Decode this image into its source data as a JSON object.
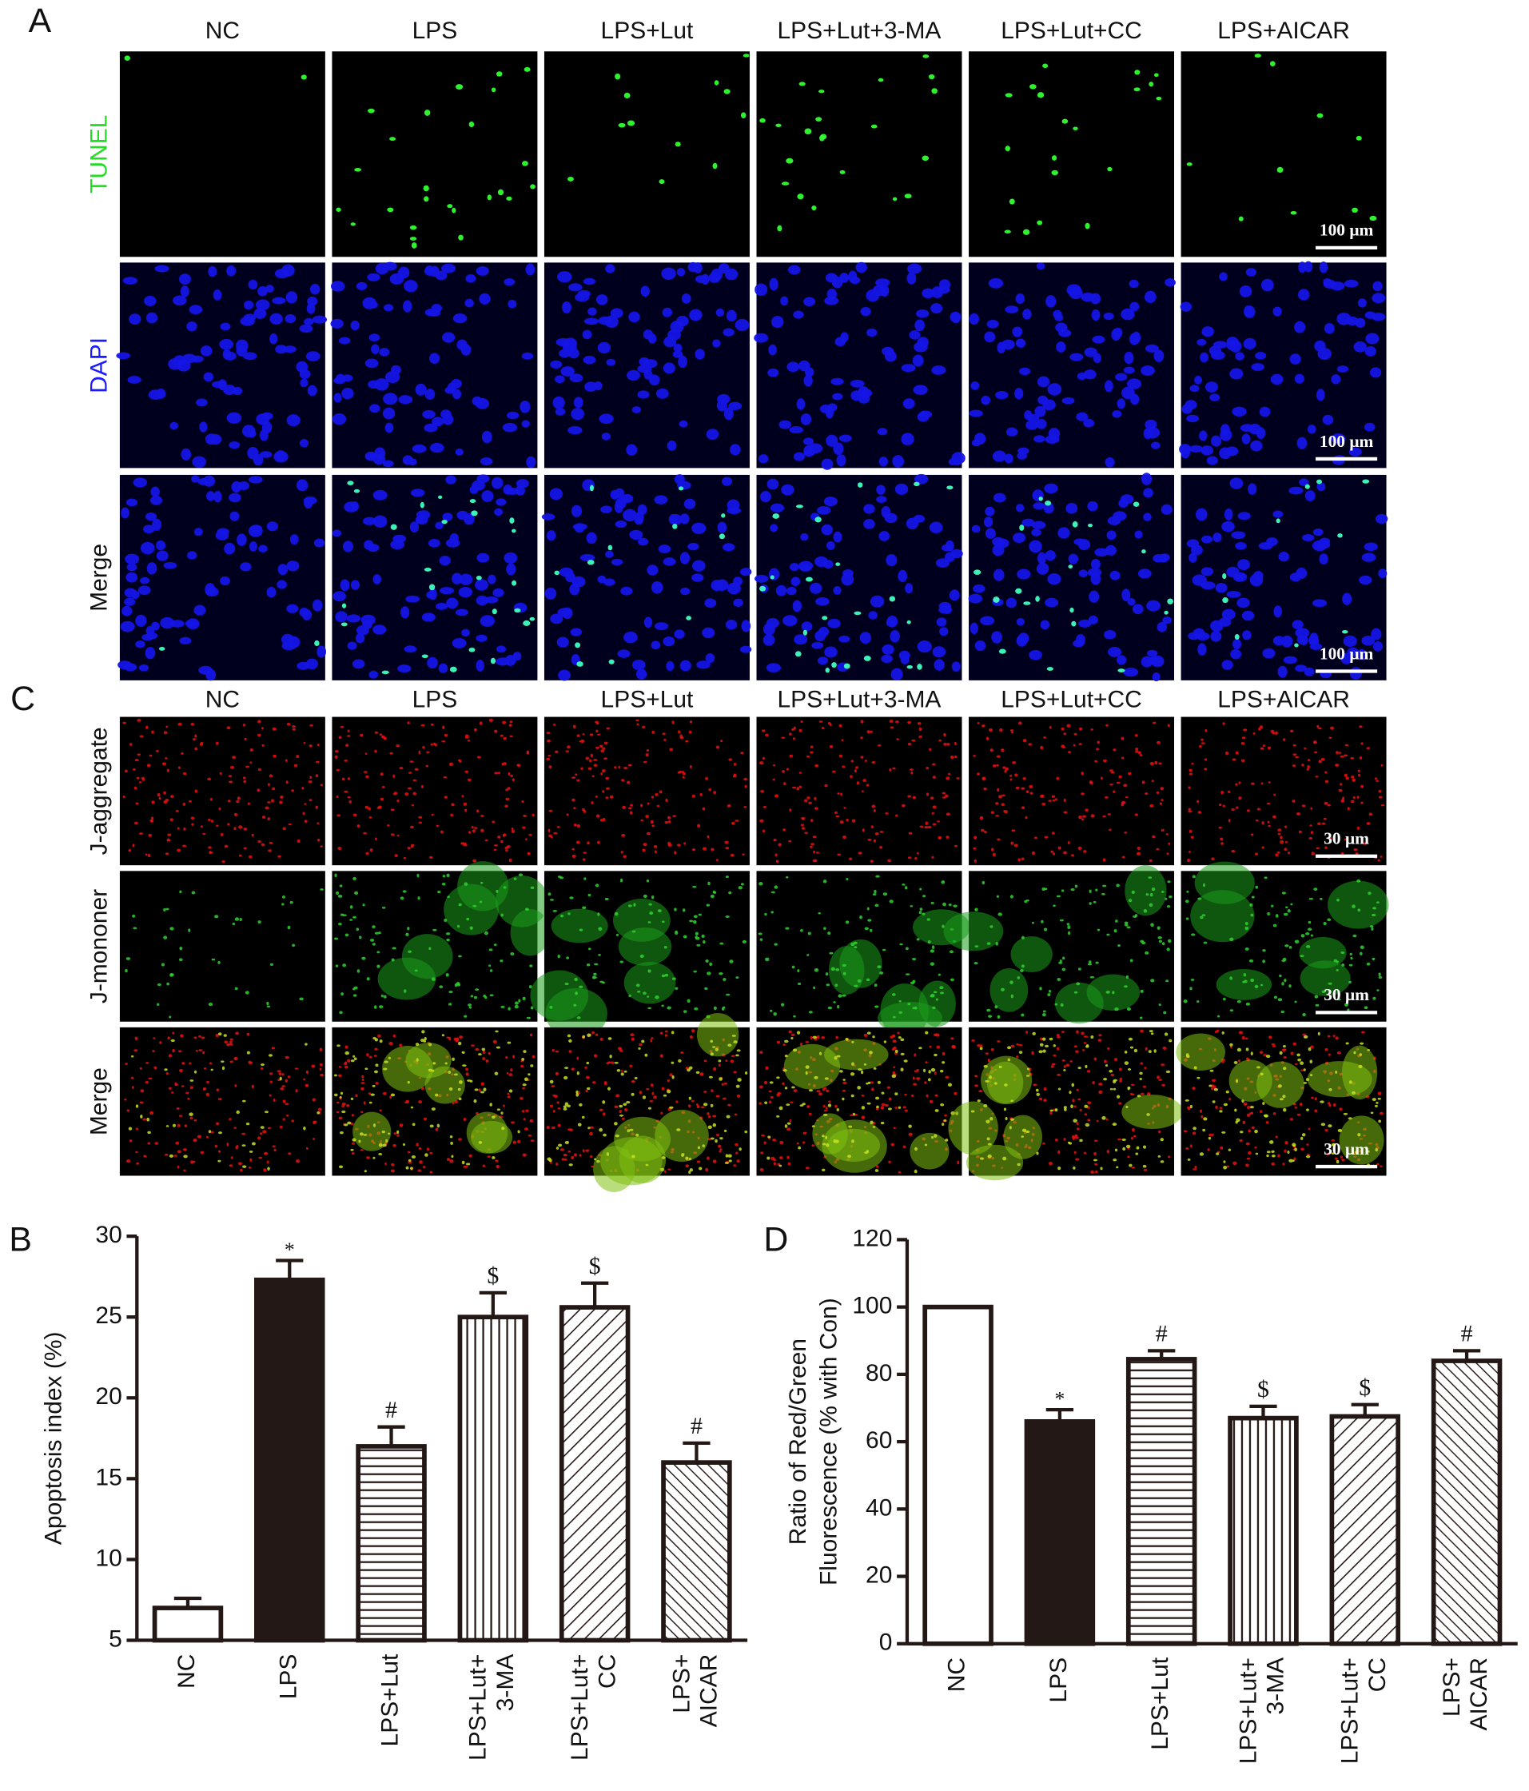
{
  "panels": {
    "A": {
      "label": "A",
      "columns": [
        "NC",
        "LPS",
        "LPS+Lut",
        "LPS+Lut+3-MA",
        "LPS+Lut+CC",
        "LPS+AICAR"
      ],
      "rows": [
        "TUNEL",
        "DAPI",
        "Merge"
      ],
      "scale_bar": "100 μm"
    },
    "C": {
      "label": "C",
      "columns": [
        "NC",
        "LPS",
        "LPS+Lut",
        "LPS+Lut+3-MA",
        "LPS+Lut+CC",
        "LPS+AICAR"
      ],
      "rows": [
        "J-aggregate",
        "J-mononer",
        "Merge"
      ],
      "scale_bar": "30 μm"
    }
  },
  "chart_data": [
    {
      "type": "bar",
      "label": "B",
      "ylabel": "Apoptosis index (%)",
      "categories": [
        "NC",
        "LPS",
        "LPS+Lut",
        "LPS+Lut+\n3-MA",
        "LPS+Lut+\nCC",
        "LPS+\nAICAR"
      ],
      "values": [
        7.0,
        27.3,
        17.0,
        25.0,
        25.6,
        16.0
      ],
      "errors": [
        0.6,
        1.2,
        1.2,
        1.5,
        1.5,
        1.2
      ],
      "annotations": [
        null,
        "*",
        "#",
        "$",
        "$",
        "#"
      ],
      "patterns": [
        "none",
        "solid",
        "horizontal",
        "vertical",
        "diagonal",
        "diagonal-back"
      ],
      "color": "#231815",
      "ylim": [
        5,
        30
      ],
      "yticks": [
        5,
        10,
        15,
        20,
        25,
        30
      ]
    },
    {
      "type": "bar",
      "label": "D",
      "ylabel": "Ratio of Red/Green\nFluorescence (% with Con)",
      "categories": [
        "NC",
        "LPS",
        "LPS+Lut",
        "LPS+Lut+\n3-MA",
        "LPS+Lut+\nCC",
        "LPS+\nAICAR"
      ],
      "values": [
        100,
        66,
        84.5,
        67,
        67.5,
        84
      ],
      "errors": [
        null,
        3.5,
        2.5,
        3.5,
        3.5,
        3
      ],
      "annotations": [
        null,
        "*",
        "#",
        "$",
        "$",
        "#"
      ],
      "patterns": [
        "none",
        "solid",
        "horizontal",
        "vertical",
        "diagonal",
        "diagonal-back"
      ],
      "color": "#231815",
      "ylim": [
        0,
        120
      ],
      "yticks": [
        0,
        20,
        40,
        60,
        80,
        100,
        120
      ]
    }
  ]
}
